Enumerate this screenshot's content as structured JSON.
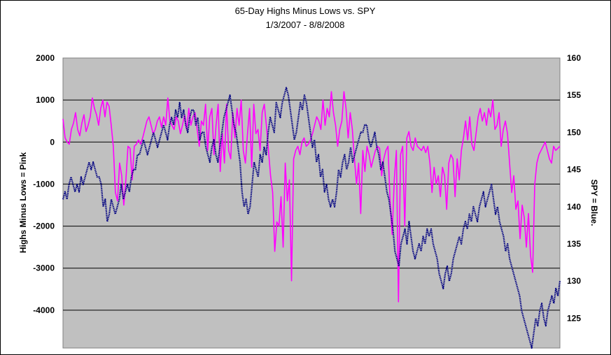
{
  "chart_data": {
    "type": "line",
    "title": "65-Day Highs Minus Lows vs. SPY",
    "subtitle": "1/3/2007 - 8/8/2008",
    "ylabel_left": "Highs Minus Lows = Pink",
    "ylabel_right": "SPY = Blue.",
    "ylim_left": [
      -4900,
      2000
    ],
    "ylim_right": [
      121,
      160
    ],
    "yticks_left": [
      2000,
      1000,
      0,
      -1000,
      -2000,
      -3000,
      -4000
    ],
    "yticks_right": [
      160,
      155,
      150,
      145,
      140,
      135,
      130,
      125
    ],
    "grid": true,
    "legend": "none",
    "n_points": 400,
    "series": [
      {
        "name": "Highs Minus Lows",
        "axis": "left",
        "color": "#ff00ff",
        "values": [
          550,
          100,
          0,
          -50,
          300,
          450,
          700,
          300,
          150,
          450,
          650,
          250,
          400,
          600,
          1050,
          800,
          650,
          400,
          800,
          1000,
          600,
          950,
          850,
          400,
          -100,
          -1200,
          -1400,
          -500,
          -800,
          -1500,
          -900,
          -100,
          -150,
          -900,
          -100,
          -50,
          50,
          -50,
          100,
          300,
          500,
          600,
          400,
          200,
          300,
          500,
          600,
          350,
          600,
          400,
          1050,
          500,
          400,
          300,
          600,
          500,
          200,
          400,
          650,
          300,
          800,
          400,
          600,
          700,
          300,
          -100,
          500,
          400,
          900,
          -200,
          600,
          800,
          -300,
          400,
          900,
          -700,
          200,
          -500,
          900,
          -200,
          -400,
          700,
          100,
          800,
          400,
          1000,
          -200,
          -500,
          200,
          800,
          -600,
          900,
          200,
          300,
          -200,
          700,
          900,
          400,
          -200,
          -800,
          -1200,
          -2600,
          -1900,
          -2000,
          -1300,
          -2500,
          -500,
          -1400,
          -900,
          -3300,
          -400,
          -200,
          -100,
          -300,
          0,
          100,
          -100,
          -50,
          50,
          200,
          400,
          600,
          500,
          300,
          1000,
          400,
          800,
          600,
          1200,
          700,
          400,
          -100,
          300,
          500,
          1200,
          800,
          100,
          700,
          300,
          -400,
          -1000,
          -500,
          -1700,
          -200,
          -700,
          -100,
          -300,
          -600,
          -400,
          -200,
          -100,
          -150,
          -800,
          -400,
          -200,
          -100,
          -1400,
          -2200,
          -900,
          -200,
          -3800,
          -300,
          -100,
          -2000,
          100,
          250,
          -100,
          -200,
          100,
          -100,
          -150,
          -200,
          -100,
          -250,
          -100,
          -500,
          -1200,
          -600,
          -1000,
          -800,
          -1300,
          -600,
          -800,
          -1600,
          -500,
          -300,
          -400,
          -1300,
          -400,
          -900,
          -200,
          100,
          500,
          50,
          600,
          -50,
          -200,
          200,
          600,
          800,
          500,
          700,
          400,
          800,
          600,
          1000,
          300,
          400,
          700,
          -100,
          300,
          500,
          200,
          -500,
          -1200,
          -800,
          -1600,
          -1400,
          -2300,
          -1500,
          -1800,
          -2500,
          -1700,
          -2700,
          -3100,
          -1000,
          -500,
          -300,
          -200,
          -100,
          0,
          -200,
          -400,
          -500,
          -100,
          -200,
          -150,
          -100
        ],
        "note": "curve traced from plot"
      },
      {
        "name": "SPY",
        "axis": "right",
        "color": "#000080",
        "values": [
          141,
          142,
          141,
          143,
          144,
          143,
          142,
          143,
          142,
          144,
          143,
          144,
          145,
          146,
          145,
          146,
          145,
          144,
          144,
          143,
          140,
          141,
          138,
          139,
          141,
          140,
          139,
          140,
          141,
          143,
          141,
          142,
          143,
          142,
          144,
          145,
          145,
          147,
          147,
          148,
          149,
          148,
          147,
          148,
          149,
          150,
          149,
          148,
          149,
          150,
          151,
          150,
          149,
          151,
          152,
          151,
          153,
          152,
          154,
          152,
          153,
          151,
          150,
          152,
          153,
          153,
          151,
          152,
          149,
          150,
          150,
          148,
          147,
          146,
          148,
          149,
          147,
          146,
          148,
          150,
          152,
          153,
          154,
          155,
          153,
          151,
          150,
          148,
          146,
          142,
          140,
          141,
          139,
          140,
          143,
          146,
          145,
          144,
          147,
          146,
          148,
          147,
          150,
          152,
          151,
          150,
          154,
          153,
          152,
          154,
          155,
          156,
          155,
          153,
          151,
          149,
          150,
          152,
          154,
          153,
          155,
          154,
          152,
          150,
          148,
          149,
          146,
          147,
          144,
          145,
          142,
          143,
          141,
          140,
          141,
          140,
          142,
          145,
          144,
          146,
          147,
          145,
          146,
          148,
          146,
          147,
          148,
          149,
          150,
          150,
          151,
          151,
          149,
          148,
          149,
          150,
          148,
          147,
          145,
          146,
          144,
          142,
          141,
          139,
          137,
          134,
          133,
          132,
          135,
          136,
          137,
          135,
          138,
          136,
          134,
          133,
          134,
          135,
          134,
          136,
          135,
          137,
          136,
          137,
          135,
          134,
          133,
          131,
          130,
          129,
          131,
          132,
          130,
          131,
          133,
          134,
          135,
          136,
          135,
          137,
          138,
          137,
          139,
          138,
          140,
          139,
          138,
          140,
          141,
          142,
          140,
          141,
          142,
          143,
          141,
          139,
          140,
          138,
          137,
          136,
          134,
          135,
          133,
          132,
          131,
          130,
          129,
          128,
          126,
          125,
          124,
          123,
          122,
          121,
          123,
          125,
          124,
          126,
          127,
          125,
          124,
          126,
          127,
          128,
          127,
          129,
          128,
          130
        ],
        "note": "curve traced from plot"
      }
    ]
  }
}
